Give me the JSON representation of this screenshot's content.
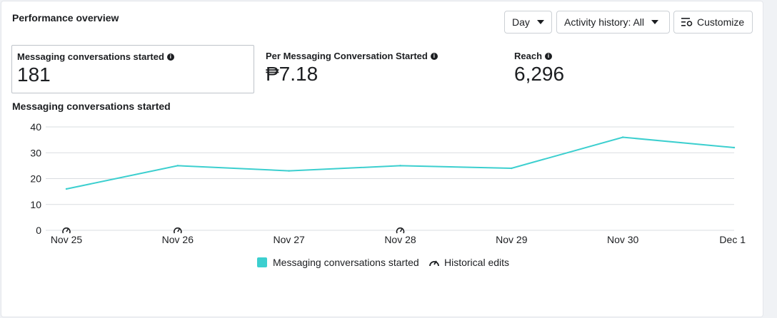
{
  "header": {
    "title": "Performance overview",
    "day_label": "Day",
    "activity_label": "Activity history: All",
    "customize_label": "Customize"
  },
  "metrics": [
    {
      "label": "Messaging conversations started",
      "value": "181"
    },
    {
      "label": "Per Messaging Conversation Started",
      "value": "₱7.18"
    },
    {
      "label": "Reach",
      "value": "6,296"
    }
  ],
  "chart_title": "Messaging conversations started",
  "legend": {
    "series_label": "Messaging conversations started",
    "edits_label": "Historical edits"
  },
  "colors": {
    "series": "#3ccfcf",
    "grid": "#dadde1"
  },
  "chart_data": {
    "type": "line",
    "categories": [
      "Nov 25",
      "Nov 26",
      "Nov 27",
      "Nov 28",
      "Nov 29",
      "Nov 30",
      "Dec 1"
    ],
    "series": [
      {
        "name": "Messaging conversations started",
        "values": [
          16,
          25,
          23,
          25,
          24,
          36,
          32
        ]
      }
    ],
    "yticks": [
      0,
      10,
      20,
      30,
      40
    ],
    "ylim": [
      0,
      40
    ],
    "grid": true,
    "legend_position": "bottom",
    "historical_edits": [
      "Nov 25",
      "Nov 26",
      "Nov 28"
    ]
  }
}
